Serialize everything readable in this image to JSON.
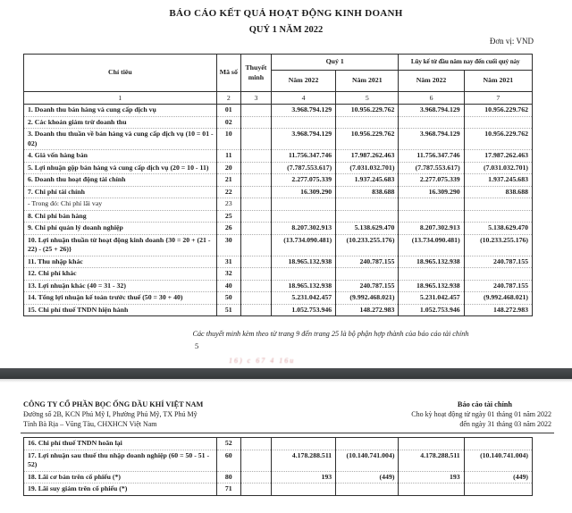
{
  "page1": {
    "title_line1": "BÁO CÁO KẾT QUẢ HOẠT ĐỘNG KINH DOANH",
    "title_line2": "QUÝ 1 NĂM 2022",
    "unit_label": "Đơn vị: VND",
    "table": {
      "headers": {
        "chi_tieu": "Chỉ tiêu",
        "ma_so": "Mã số",
        "thuyet_minh": "Thuyết minh",
        "quy1_group": "Quý 1",
        "luyke_group": "Lũy kế từ đầu năm nay đến cuối quý này",
        "year_2022": "Năm 2022",
        "year_2021": "Năm 2021",
        "index": [
          "1",
          "2",
          "3",
          "4",
          "5",
          "6",
          "7"
        ]
      },
      "rows": [
        {
          "label": "1. Doanh thu bán hàng và cung cấp dịch vụ",
          "code": "01",
          "v": [
            "3.968.794.129",
            "10.956.229.762",
            "3.968.794.129",
            "10.956.229.762"
          ],
          "bold": true
        },
        {
          "label": "2. Các khoản giảm trừ doanh thu",
          "code": "02",
          "v": [
            "",
            "",
            "",
            ""
          ],
          "bold": true
        },
        {
          "label": "3. Doanh thu thuần về bán hàng và cung cấp dịch vụ (10 = 01 - 02)",
          "code": "10",
          "v": [
            "3.968.794.129",
            "10.956.229.762",
            "3.968.794.129",
            "10.956.229.762"
          ],
          "bold": true
        },
        {
          "label": "4. Giá vốn hàng bán",
          "code": "11",
          "v": [
            "11.756.347.746",
            "17.987.262.463",
            "11.756.347.746",
            "17.987.262.463"
          ],
          "bold": true
        },
        {
          "label": "5. Lợi nhuận gộp bán hàng và cung cấp dịch vụ (20 = 10 - 11)",
          "code": "20",
          "v": [
            "(7.787.553.617)",
            "(7.031.032.701)",
            "(7.787.553.617)",
            "(7.031.032.701)"
          ],
          "bold": true
        },
        {
          "label": "6. Doanh thu hoạt động tài chính",
          "code": "21",
          "v": [
            "2.277.075.339",
            "1.937.245.683",
            "2.277.075.339",
            "1.937.245.683"
          ],
          "bold": true
        },
        {
          "label": "7. Chi phí tài chính",
          "code": "22",
          "v": [
            "16.309.290",
            "838.688",
            "16.309.290",
            "838.688"
          ],
          "bold": true
        },
        {
          "label": "- Trong đó: Chi phí lãi vay",
          "code": "23",
          "v": [
            "",
            "",
            "",
            ""
          ],
          "bold": false
        },
        {
          "label": "8. Chi phí bán hàng",
          "code": "25",
          "v": [
            "",
            "",
            "",
            ""
          ],
          "bold": true
        },
        {
          "label": "9. Chi phí quản lý doanh nghiệp",
          "code": "26",
          "v": [
            "8.207.302.913",
            "5.138.629.470",
            "8.207.302.913",
            "5.138.629.470"
          ],
          "bold": true
        },
        {
          "label": "10. Lợi nhuận thuần từ hoạt động kinh doanh {30 = 20 + (21 - 22) - (25 + 26)}",
          "code": "30",
          "v": [
            "(13.734.090.481)",
            "(10.233.255.176)",
            "(13.734.090.481)",
            "(10.233.255.176)"
          ],
          "bold": true
        },
        {
          "label": "11. Thu nhập khác",
          "code": "31",
          "v": [
            "18.965.132.938",
            "240.787.155",
            "18.965.132.938",
            "240.787.155"
          ],
          "bold": true
        },
        {
          "label": "12. Chi phí khác",
          "code": "32",
          "v": [
            "",
            "",
            "",
            ""
          ],
          "bold": true
        },
        {
          "label": "13. Lợi nhuận khác (40 = 31 - 32)",
          "code": "40",
          "v": [
            "18.965.132.938",
            "240.787.155",
            "18.965.132.938",
            "240.787.155"
          ],
          "bold": true
        },
        {
          "label": "14. Tổng lợi nhuận kế toán trước thuế (50 = 30 + 40)",
          "code": "50",
          "v": [
            "5.231.042.457",
            "(9.992.468.021)",
            "5.231.042.457",
            "(9.992.468.021)"
          ],
          "bold": true
        },
        {
          "label": "15. Chi phí thuế TNDN hiện hành",
          "code": "51",
          "v": [
            "1.052.753.946",
            "148.272.983",
            "1.052.753.946",
            "148.272.983"
          ],
          "bold": true
        }
      ]
    },
    "footnote": "Các thuyết minh kèm theo từ trang 9 đến trang 25 là bộ phận hợp thành của báo cáo tài chính",
    "page_number": "5",
    "stamp_marks": "16) c 67 4 16u"
  },
  "page2": {
    "company_name": "CÔNG TY CỔ PHẦN BỌC ỐNG DẦU KHÍ VIỆT NAM",
    "company_address1": "Đường số 2B, KCN Phú Mỹ I, Phường Phú Mỹ, TX Phú Mỹ",
    "company_address2": "Tỉnh Bà Rịa – Vũng Tàu, CHXHCN Việt Nam",
    "report_title": "Báo cáo tài chính",
    "report_period_line1": "Cho kỳ hoạt động từ ngày 01 tháng 01 năm 2022",
    "report_period_line2": "đến ngày 31 tháng 03 năm 2022",
    "rows": [
      {
        "label": "16. Chi phí thuế TNDN hoãn lại",
        "code": "52",
        "v": [
          "",
          "",
          "",
          ""
        ],
        "bold": true
      },
      {
        "label": "17. Lợi nhuận sau thuế thu nhập doanh nghiệp (60 = 50 - 51 - 52)",
        "code": "60",
        "v": [
          "4.178.288.511",
          "(10.140.741.004)",
          "4.178.288.511",
          "(10.140.741.004)"
        ],
        "bold": true
      },
      {
        "label": "18. Lãi cơ bản trên cổ phiếu (*)",
        "code": "80",
        "v": [
          "193",
          "(449)",
          "193",
          "(449)"
        ],
        "bold": true
      },
      {
        "label": "19. Lãi suy giảm trên cổ phiếu (*)",
        "code": "71",
        "v": [
          "",
          "",
          "",
          ""
        ],
        "bold": true
      }
    ]
  }
}
